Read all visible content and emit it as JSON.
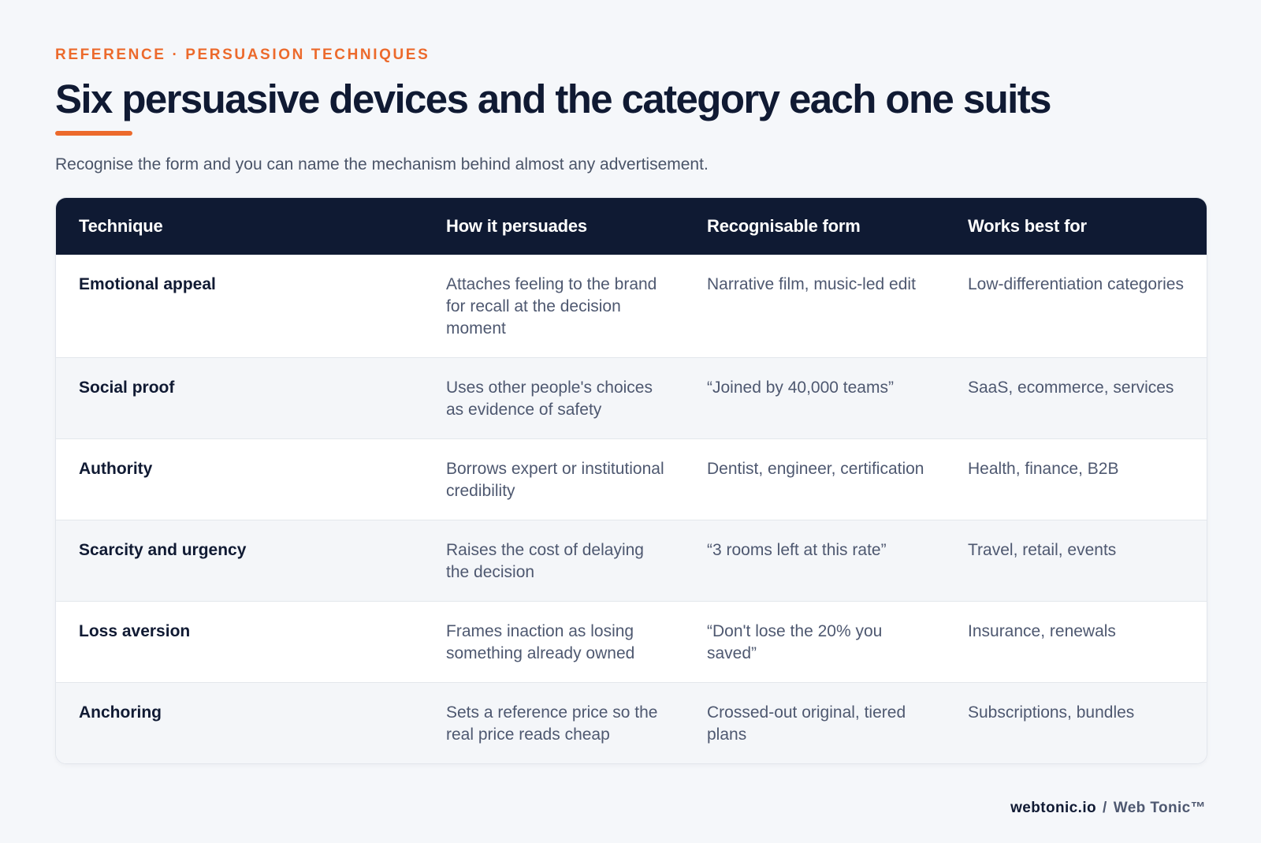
{
  "header": {
    "eyebrow": "REFERENCE · PERSUASION TECHNIQUES",
    "title": "Six persuasive devices and the category each one suits",
    "subtitle": "Recognise the form and you can name the mechanism behind almost any advertisement."
  },
  "table": {
    "columns": [
      "Technique",
      "How it persuades",
      "Recognisable form",
      "Works best for"
    ],
    "rows": [
      {
        "technique": "Emotional appeal",
        "how": "Attaches feeling to the brand for recall at the decision moment",
        "form": "Narrative film, music-led edit",
        "best_for": "Low-differentiation categories"
      },
      {
        "technique": "Social proof",
        "how": "Uses other people's choices as evidence of safety",
        "form": "“Joined by 40,000 teams”",
        "best_for": "SaaS, ecommerce, services"
      },
      {
        "technique": "Authority",
        "how": "Borrows expert or institutional credibility",
        "form": "Dentist, engineer, certification",
        "best_for": "Health, finance, B2B"
      },
      {
        "technique": "Scarcity and urgency",
        "how": "Raises the cost of delaying the decision",
        "form": "“3 rooms left at this rate”",
        "best_for": "Travel, retail, events"
      },
      {
        "technique": "Loss aversion",
        "how": "Frames inaction as losing something already owned",
        "form": "“Don't lose the 20% you saved”",
        "best_for": "Insurance, renewals"
      },
      {
        "technique": "Anchoring",
        "how": "Sets a reference price so the real price reads cheap",
        "form": "Crossed-out original, tiered plans",
        "best_for": "Subscriptions, bundles"
      }
    ]
  },
  "footer": {
    "domain": "webtonic.io",
    "separator": "/",
    "brand": "Web Tonic™"
  },
  "colors": {
    "accent": "#ec6a2c",
    "navy": "#0f1a33",
    "background": "#f5f7fa"
  }
}
